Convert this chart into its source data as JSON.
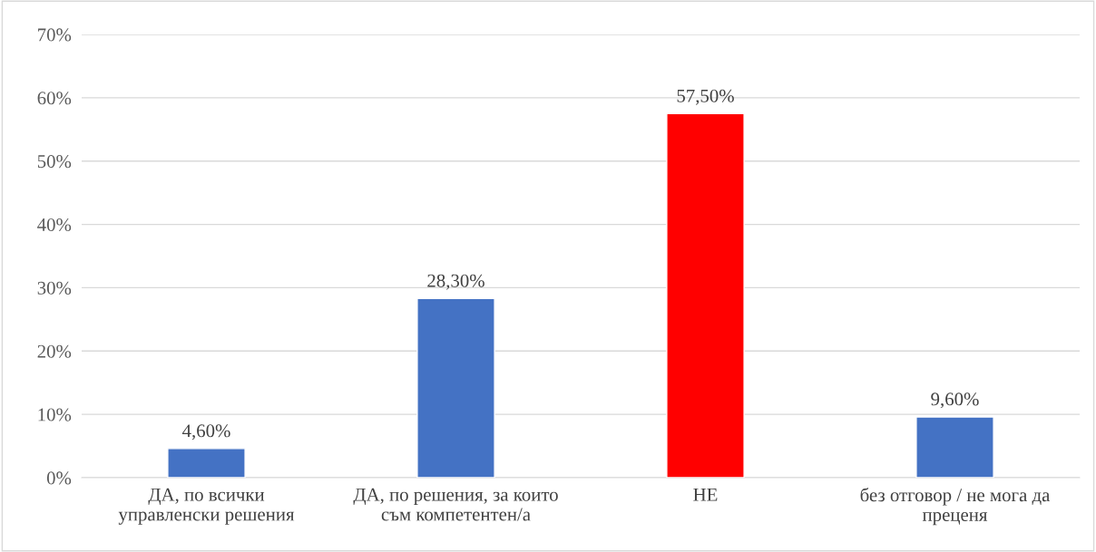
{
  "chart_data": {
    "type": "bar",
    "categories": [
      "ДА, по всички\nуправленски решения",
      "ДА, по решения, за които\nсъм компетентен/а",
      "НЕ",
      "без отговор / не мога да\nпреценя"
    ],
    "values": [
      4.6,
      28.3,
      57.5,
      9.6
    ],
    "colors": [
      "#4472c4",
      "#4472c4",
      "#ff0000",
      "#4472c4"
    ],
    "value_labels": [
      "4,60%",
      "28,30%",
      "57,50%",
      "9,60%"
    ],
    "ylim": [
      0,
      70
    ],
    "yticks": [
      {
        "value": 0,
        "label": "0%"
      },
      {
        "value": 10,
        "label": "10%"
      },
      {
        "value": 20,
        "label": "20%"
      },
      {
        "value": 30,
        "label": "30%"
      },
      {
        "value": 40,
        "label": "40%"
      },
      {
        "value": 50,
        "label": "50%"
      },
      {
        "value": 60,
        "label": "60%"
      },
      {
        "value": 70,
        "label": "70%"
      }
    ],
    "grid": "y"
  }
}
